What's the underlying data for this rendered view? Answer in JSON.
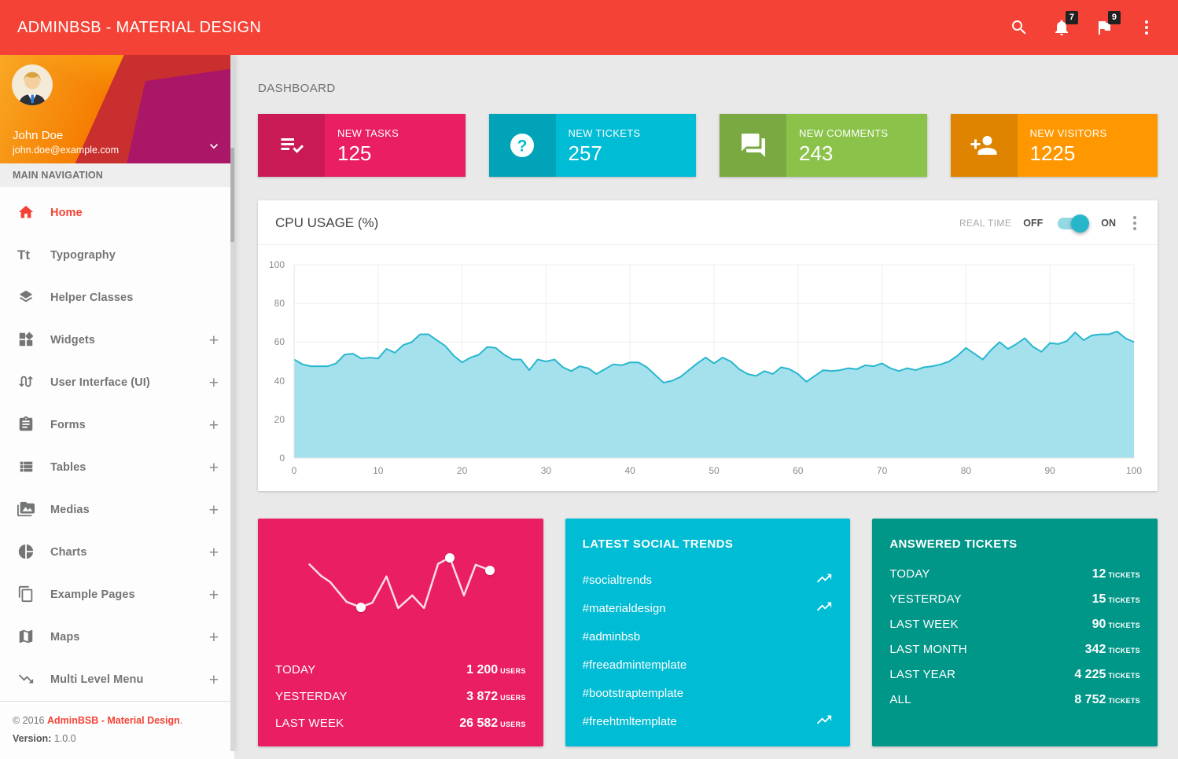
{
  "header": {
    "title": "ADMINBSB - MATERIAL DESIGN",
    "actions": [
      {
        "name": "search-icon",
        "badge": null
      },
      {
        "name": "notifications-bell-icon",
        "badge": "7"
      },
      {
        "name": "flag-icon",
        "badge": "9"
      },
      {
        "name": "kebab-menu-icon",
        "badge": null
      }
    ]
  },
  "sidebar": {
    "user": {
      "name": "John Doe",
      "email": "john.doe@example.com"
    },
    "section_title": "MAIN NAVIGATION",
    "items": [
      {
        "label": "Home",
        "icon": "home-icon",
        "active": true,
        "expandable": false
      },
      {
        "label": "Typography",
        "icon": "typography-icon",
        "active": false,
        "expandable": false
      },
      {
        "label": "Helper Classes",
        "icon": "layers-icon",
        "active": false,
        "expandable": false
      },
      {
        "label": "Widgets",
        "icon": "widgets-icon",
        "active": false,
        "expandable": true
      },
      {
        "label": "User Interface (UI)",
        "icon": "swap-calls-icon",
        "active": false,
        "expandable": true
      },
      {
        "label": "Forms",
        "icon": "assignment-icon",
        "active": false,
        "expandable": true
      },
      {
        "label": "Tables",
        "icon": "view-list-icon",
        "active": false,
        "expandable": true
      },
      {
        "label": "Medias",
        "icon": "perm-media-icon",
        "active": false,
        "expandable": true
      },
      {
        "label": "Charts",
        "icon": "pie-chart-icon",
        "active": false,
        "expandable": true
      },
      {
        "label": "Example Pages",
        "icon": "content-copy-icon",
        "active": false,
        "expandable": true
      },
      {
        "label": "Maps",
        "icon": "map-icon",
        "active": false,
        "expandable": true
      },
      {
        "label": "Multi Level Menu",
        "icon": "trending-down-icon",
        "active": false,
        "expandable": true
      }
    ],
    "footer": {
      "copyright_prefix": "© 2016 ",
      "brand": "AdminBSB - Material Design",
      "copyright_suffix": ".",
      "version_label": "Version:",
      "version_value": "1.0.0"
    }
  },
  "main": {
    "page_title": "DASHBOARD"
  },
  "info_boxes": [
    {
      "label": "NEW TASKS",
      "value": "125",
      "color": "#E91E63",
      "icon": "playlist-check-icon"
    },
    {
      "label": "NEW TICKETS",
      "value": "257",
      "color": "#00BCD4",
      "icon": "help-question-icon"
    },
    {
      "label": "NEW COMMENTS",
      "value": "243",
      "color": "#8BC34A",
      "icon": "forum-icon"
    },
    {
      "label": "NEW VISITORS",
      "value": "1225",
      "color": "#FF9800",
      "icon": "person-add-icon"
    }
  ],
  "cpu_card": {
    "title": "CPU USAGE (%)",
    "real_time_label": "REAL TIME",
    "off_label": "OFF",
    "on_label": "ON",
    "toggle_state": "on"
  },
  "chart_data": [
    {
      "type": "area",
      "title": "CPU USAGE (%)",
      "xlabel": "",
      "ylabel": "",
      "x_range": [
        0,
        100
      ],
      "y_range": [
        0,
        100
      ],
      "x_ticks": [
        0,
        10,
        20,
        30,
        40,
        50,
        60,
        70,
        80,
        90,
        100
      ],
      "y_ticks": [
        0,
        20,
        40,
        60,
        80,
        100
      ],
      "grid": true,
      "line_color": "#28b7ce",
      "fill_color": "#a5e1ed",
      "x_step": 1,
      "values": [
        51,
        48.5,
        47.5,
        47.5,
        47.5,
        49,
        53.5,
        54,
        51.5,
        52,
        51.5,
        56.5,
        54.5,
        58.5,
        60,
        64,
        64,
        61,
        58,
        53,
        49.5,
        52,
        53.5,
        57.5,
        57,
        53.5,
        51,
        51,
        45.5,
        51,
        50,
        51,
        47,
        45,
        47.5,
        46.5,
        43.5,
        46,
        48.5,
        48,
        49.5,
        49.5,
        47,
        43,
        39,
        40,
        42,
        45.5,
        49,
        52,
        49,
        52,
        50,
        46,
        43.5,
        42.5,
        45,
        43.5,
        47,
        46,
        43.5,
        39.5,
        42.5,
        45.5,
        45,
        45.5,
        46.5,
        46,
        48,
        47.5,
        49,
        46.5,
        45,
        46.5,
        45.5,
        47,
        47.5,
        48.5,
        50,
        53,
        57,
        54,
        51,
        56,
        60,
        56.5,
        59,
        62,
        57.5,
        55,
        59.5,
        59,
        60.5,
        65,
        61,
        63.5,
        64,
        64,
        65.5,
        62,
        60
      ]
    },
    {
      "type": "line",
      "title": "Visitors sparkline",
      "line_color": "#FFFFFF",
      "points": [
        [
          11,
          24
        ],
        [
          16,
          37
        ],
        [
          20,
          44
        ],
        [
          27,
          66
        ],
        [
          33,
          72
        ],
        [
          38,
          67
        ],
        [
          44,
          38
        ],
        [
          49,
          73
        ],
        [
          55,
          59
        ],
        [
          60,
          73
        ],
        [
          66,
          24
        ],
        [
          71,
          17
        ],
        [
          77,
          59
        ],
        [
          82,
          25
        ],
        [
          88,
          31
        ]
      ],
      "dot_indices": [
        4,
        11,
        14
      ]
    }
  ],
  "users_card": {
    "color": "#E91E63",
    "rows": [
      {
        "label": "TODAY",
        "value": "1 200",
        "unit": "USERS"
      },
      {
        "label": "YESTERDAY",
        "value": "3 872",
        "unit": "USERS"
      },
      {
        "label": "LAST WEEK",
        "value": "26 582",
        "unit": "USERS"
      }
    ]
  },
  "trends_card": {
    "title": "LATEST SOCIAL TRENDS",
    "color": "#00BCD4",
    "items": [
      {
        "tag": "#socialtrends",
        "trending": true
      },
      {
        "tag": "#materialdesign",
        "trending": true
      },
      {
        "tag": "#adminbsb",
        "trending": false
      },
      {
        "tag": "#freeadmintemplate",
        "trending": false
      },
      {
        "tag": "#bootstraptemplate",
        "trending": false
      },
      {
        "tag": "#freehtmltemplate",
        "trending": true
      }
    ]
  },
  "tickets_card": {
    "title": "ANSWERED TICKETS",
    "color": "#009688",
    "rows": [
      {
        "label": "TODAY",
        "value": "12",
        "unit": "TICKETS"
      },
      {
        "label": "YESTERDAY",
        "value": "15",
        "unit": "TICKETS"
      },
      {
        "label": "LAST WEEK",
        "value": "90",
        "unit": "TICKETS"
      },
      {
        "label": "LAST MONTH",
        "value": "342",
        "unit": "TICKETS"
      },
      {
        "label": "LAST YEAR",
        "value": "4 225",
        "unit": "TICKETS"
      },
      {
        "label": "ALL",
        "value": "8 752",
        "unit": "TICKETS"
      }
    ]
  },
  "colors": {
    "header": "#F44336",
    "body_bg": "#E9E9E9",
    "pink": "#E91E63",
    "cyan": "#00BCD4",
    "green": "#8BC34A",
    "orange": "#FF9800",
    "teal": "#009688",
    "badge_bg": "#212121"
  }
}
